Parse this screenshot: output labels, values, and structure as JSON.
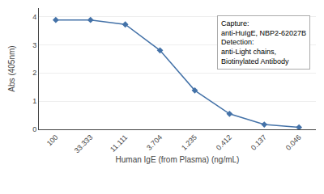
{
  "chart_data": {
    "type": "line",
    "categories": [
      "100",
      "33.333",
      "11.111",
      "3.704",
      "1.235",
      "0.412",
      "0.137",
      "0.046"
    ],
    "values": [
      3.88,
      3.88,
      3.72,
      2.8,
      1.38,
      0.55,
      0.17,
      0.07
    ],
    "color": "#4472a8",
    "marker": "diamond",
    "xlabel": "Human IgE (from Plasma) (ng/mL)",
    "ylabel": "Abs (405nm)",
    "ylim": [
      0,
      4.3
    ],
    "yticks": [
      0,
      1,
      2,
      3,
      4
    ],
    "grid": true,
    "annotations": [
      "Capture:",
      "anti-HuIgE, NBP2-62027B",
      "Detection:",
      "anti-Light chains,",
      "Biotinylated Antibody"
    ]
  }
}
